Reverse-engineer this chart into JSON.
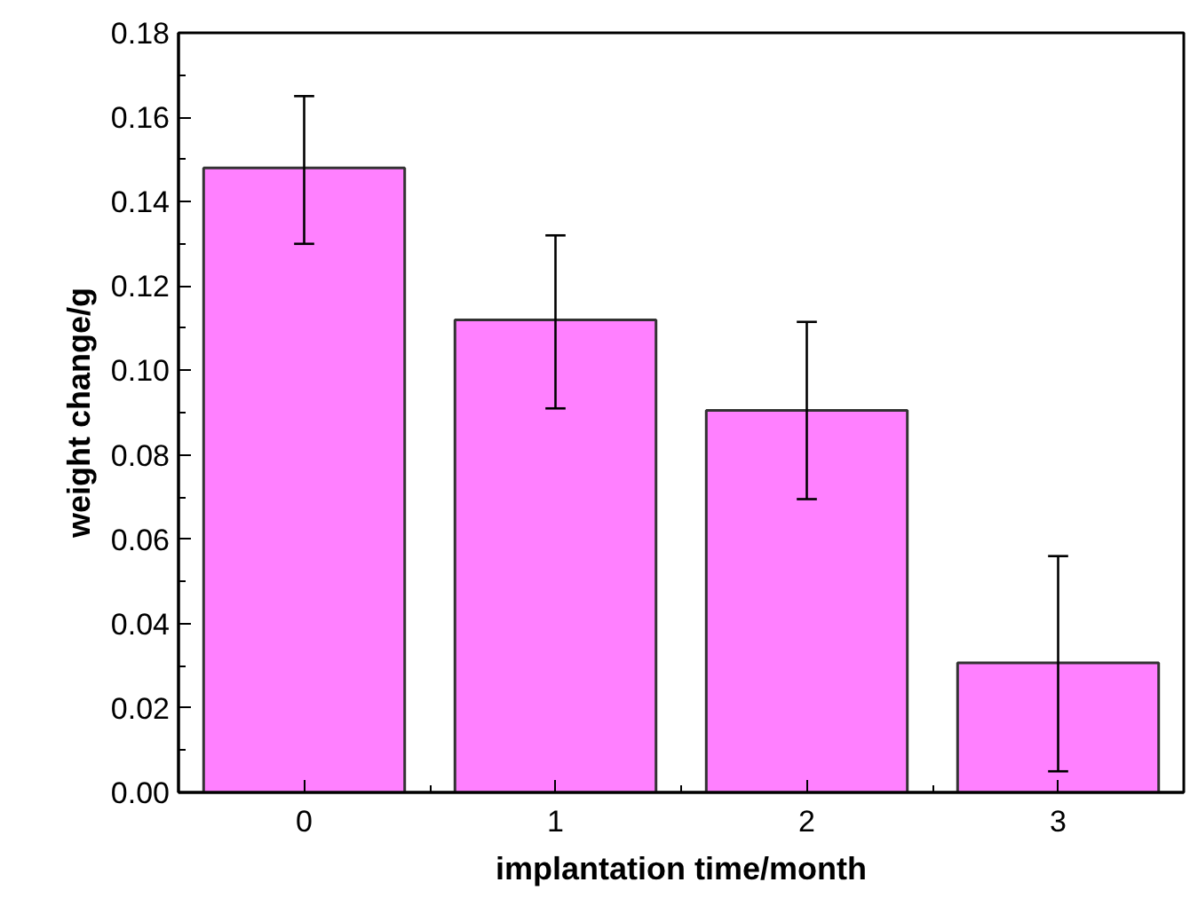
{
  "chart_data": {
    "type": "bar",
    "xlabel": "implantation time/month",
    "ylabel": "weight change/g",
    "categories": [
      "0",
      "1",
      "2",
      "3"
    ],
    "values": [
      0.148,
      0.112,
      0.0905,
      0.0307
    ],
    "errors": [
      [
        0.13,
        0.165
      ],
      [
        0.091,
        0.132
      ],
      [
        0.0695,
        0.1115
      ],
      [
        0.005,
        0.056
      ]
    ],
    "color": "#ff80ff",
    "ylim": [
      0,
      0.18
    ],
    "yticks": [
      {
        "value": 0,
        "label": "0.00"
      },
      {
        "value": 0.02,
        "label": "0.02"
      },
      {
        "value": 0.04,
        "label": "0.04"
      },
      {
        "value": 0.06,
        "label": "0.06"
      },
      {
        "value": 0.08,
        "label": "0.08"
      },
      {
        "value": 0.1,
        "label": "0.10"
      },
      {
        "value": 0.12,
        "label": "0.12"
      },
      {
        "value": 0.14,
        "label": "0.14"
      },
      {
        "value": 0.16,
        "label": "0.16"
      },
      {
        "value": 0.18,
        "label": "0.18"
      }
    ],
    "grid": false
  }
}
